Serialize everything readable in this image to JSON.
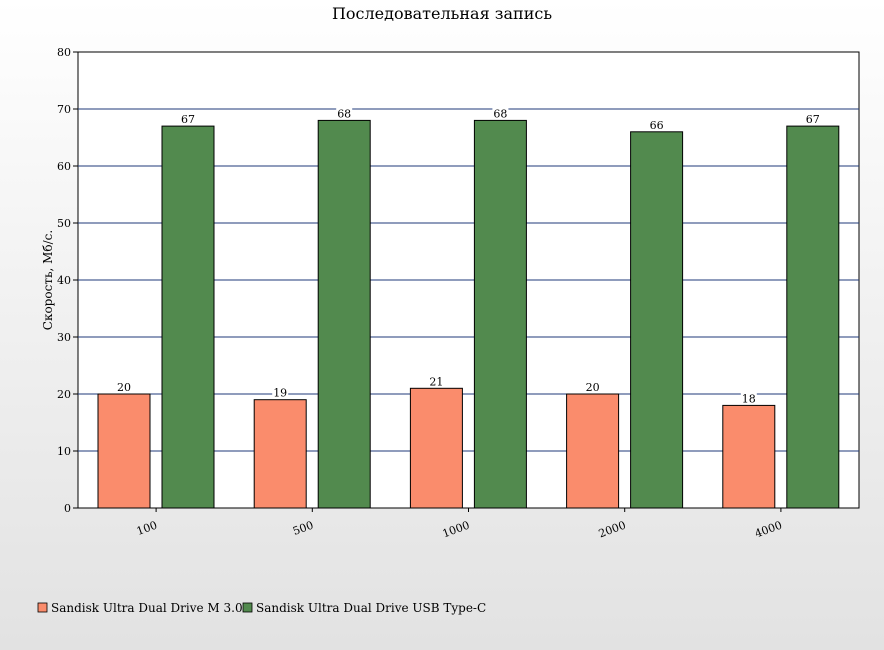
{
  "chart_data": {
    "type": "bar",
    "title": "Последовательная запись",
    "ylabel": "Скорость, Мб/с.",
    "xlabel": "",
    "categories": [
      "100",
      "500",
      "1000",
      "2000",
      "4000"
    ],
    "ylim": [
      0,
      80
    ],
    "yticks": [
      0,
      10,
      20,
      30,
      40,
      50,
      60,
      70,
      80
    ],
    "grid": true,
    "legend_position": "bottom-left",
    "series": [
      {
        "name": "Sandisk Ultra Dual Drive M 3.0",
        "color": "#fa8c6c",
        "values": [
          20,
          19,
          21,
          20,
          18
        ]
      },
      {
        "name": "Sandisk Ultra Dual Drive USB Type-C",
        "color": "#528a4e",
        "values": [
          67,
          68,
          68,
          66,
          67
        ]
      }
    ]
  }
}
